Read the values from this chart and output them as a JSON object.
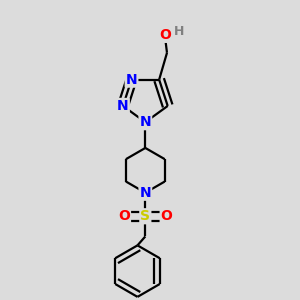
{
  "background_color": "#dcdcdc",
  "bond_color": "#000000",
  "bond_width": 1.6,
  "atom_colors": {
    "N": "#0000ff",
    "O": "#ff0000",
    "S": "#cccc00",
    "H": "#808080",
    "C": "#000000"
  },
  "font_size_atom": 10,
  "fig_size": [
    3.0,
    3.0
  ],
  "dpi": 100
}
